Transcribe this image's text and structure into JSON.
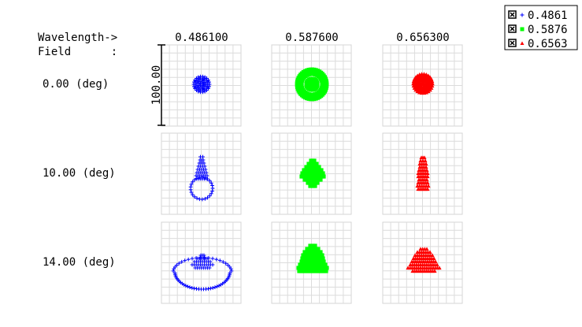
{
  "chart_data": {
    "type": "scatter",
    "title": "",
    "header": {
      "wavelength_label": "Wavelength->",
      "field_label": "Field      :"
    },
    "wavelengths": [
      "0.486100",
      "0.587600",
      "0.656300"
    ],
    "fields": [
      "0.00 (deg)",
      "10.00 (deg)",
      "14.00 (deg)"
    ],
    "scale_label": "100.00",
    "grid": true,
    "legend": {
      "placement": "top-right",
      "entries": [
        {
          "label": "0.4861",
          "color": "#0000ff",
          "marker": "plus"
        },
        {
          "label": "0.5876",
          "color": "#00ff00",
          "marker": "square"
        },
        {
          "label": "0.6563",
          "color": "#ff0000",
          "marker": "triangle"
        }
      ]
    },
    "series": [
      {
        "name": "0.4861",
        "color": "#0000ff",
        "marker": "plus"
      },
      {
        "name": "0.5876",
        "color": "#00ff00",
        "marker": "square"
      },
      {
        "name": "0.6563",
        "color": "#ff0000",
        "marker": "triangle"
      }
    ]
  }
}
